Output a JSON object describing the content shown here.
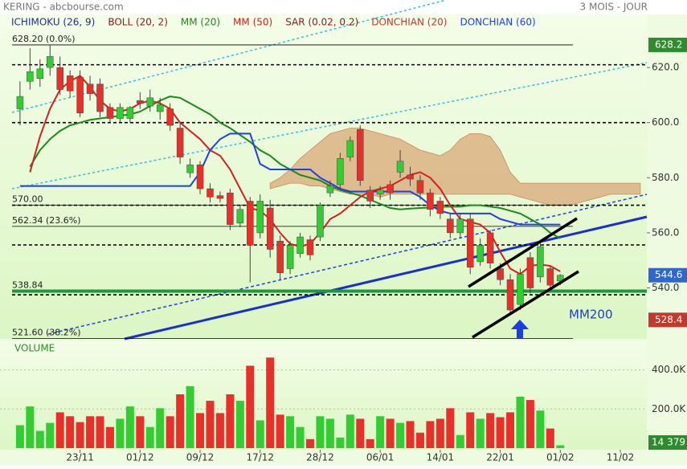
{
  "header": {
    "title": "KERING - abcbourse.com",
    "period": "3 MOIS - JOUR"
  },
  "chart_data": [
    {
      "type": "candlestick",
      "xlim": [
        -2,
        62.65
      ],
      "ylim": [
        521.5,
        644.5
      ],
      "yticks": [
        {
          "value": 620,
          "label": "620.0"
        },
        {
          "value": 600,
          "label": "600.0"
        },
        {
          "value": 580,
          "label": "580.0"
        },
        {
          "value": 560,
          "label": "560.0"
        },
        {
          "value": 540,
          "label": "540.0"
        }
      ],
      "up_color": "#33cc33",
      "down_color": "#e8302a",
      "open": [
        605,
        615,
        616,
        620,
        620,
        617,
        616.5,
        614,
        614,
        605.5,
        601.5,
        601.5,
        608,
        606,
        604,
        605,
        598,
        581.8,
        584.7,
        576,
        573.5,
        574.5,
        563.5,
        571.5,
        560,
        569,
        557,
        547,
        552.5,
        557.5,
        558.5,
        574.5,
        577.5,
        587.5,
        597.5,
        575.5,
        574,
        577.5,
        582,
        581,
        579,
        574.5,
        571.5,
        565,
        560,
        565,
        549.5,
        560,
        547,
        543,
        534,
        551,
        544,
        547,
        542.5
      ],
      "high": [
        615,
        627,
        623,
        628,
        624,
        619,
        619,
        617,
        616,
        607,
        607,
        606,
        611,
        612,
        609,
        607,
        600,
        587,
        586,
        578,
        575,
        576,
        570,
        573,
        574,
        572,
        559,
        557,
        560,
        559,
        571,
        579,
        589,
        595,
        599,
        577,
        577,
        579,
        590,
        584,
        581,
        576,
        573,
        567,
        567,
        567,
        558,
        561,
        549,
        545,
        547,
        553,
        557,
        548,
        545
      ],
      "low": [
        599,
        612,
        613,
        617,
        610,
        609,
        602,
        608,
        602,
        600,
        600,
        600,
        605,
        604,
        601,
        597,
        585,
        580,
        574,
        571,
        571,
        561,
        562,
        542,
        558,
        551,
        543,
        545,
        551,
        550,
        557,
        573,
        576,
        586,
        577,
        569,
        572,
        572,
        580,
        577,
        572,
        566,
        565,
        558,
        558,
        545,
        548,
        547,
        541,
        530,
        532,
        538,
        542,
        539,
        541
      ],
      "close": [
        609.5,
        618.5,
        619.5,
        624,
        612,
        611.5,
        603.5,
        610.5,
        604,
        601.5,
        605.5,
        605.5,
        607,
        609,
        606.5,
        599,
        587.5,
        584.7,
        576,
        573,
        572.5,
        563,
        568.5,
        555.5,
        571.5,
        554,
        545.5,
        555.5,
        558.5,
        552,
        570,
        577,
        587,
        593.5,
        579,
        571.5,
        575.5,
        574.5,
        586,
        579.5,
        574.5,
        568.5,
        567,
        560,
        565,
        547.5,
        555.5,
        549,
        543,
        532,
        545,
        540,
        555,
        541,
        544.6
      ],
      "series": [
        {
          "name": "ICHIMOKU (26, 9)",
          "color": "#1f2f8f",
          "x": [
            25,
            26,
            27,
            28,
            29,
            30,
            31,
            32,
            33,
            34,
            35,
            36,
            37,
            38,
            39,
            40,
            41,
            42,
            43,
            44,
            45,
            46,
            47,
            48,
            49,
            50,
            51,
            52,
            53,
            54,
            55,
            56,
            57,
            58,
            59,
            60,
            61,
            62
          ],
          "upper": [
            578,
            580,
            583,
            587,
            590,
            593,
            596,
            597,
            598,
            598,
            597,
            596,
            595,
            594,
            592,
            590,
            589,
            588,
            590,
            594,
            596,
            596,
            595,
            590,
            582,
            578,
            578,
            578,
            578,
            578,
            578,
            578,
            578,
            578,
            578,
            578,
            578,
            578
          ],
          "lower": [
            576,
            577,
            578,
            578,
            577,
            577,
            576,
            575,
            574,
            574,
            574,
            573,
            574,
            574,
            574,
            574,
            574,
            574,
            574,
            574,
            574,
            574,
            574,
            574,
            574,
            573,
            572,
            571,
            570,
            570,
            570,
            571,
            572,
            573,
            574,
            574,
            574,
            574
          ]
        },
        {
          "name": "BOLL (20, 2)",
          "color": "#8b1a1a"
        },
        {
          "name": "MM (20)",
          "color": "#1a8a1a",
          "values": [
            null,
            584,
            590,
            594,
            597,
            599,
            600,
            601,
            601.5,
            602,
            602.5,
            603,
            604,
            606,
            608,
            609.5,
            609,
            607,
            605,
            603,
            600,
            598,
            595.5,
            593,
            590,
            588,
            585,
            583,
            581,
            580,
            579,
            577,
            575.5,
            574.5,
            573.5,
            572,
            570.5,
            569,
            568.5,
            568.8,
            569,
            569.2,
            569.5,
            569.5,
            569.5,
            570,
            570,
            569.5,
            569,
            568,
            567,
            565,
            563,
            560,
            558
          ]
        },
        {
          "name": "MM (50)",
          "color": "#d42020",
          "values": [
            null,
            582,
            595,
            605,
            612,
            615,
            617,
            613,
            608,
            605,
            604,
            605,
            607,
            608,
            607,
            605,
            600,
            597,
            594,
            590,
            588,
            583,
            576,
            569,
            568,
            565,
            560,
            556,
            555,
            556,
            560,
            565,
            567,
            570,
            573,
            575,
            576,
            577,
            579,
            581,
            582,
            580,
            576,
            570,
            565,
            564,
            563,
            560,
            553,
            547,
            545,
            548,
            548.5,
            548,
            546
          ]
        },
        {
          "name": "SAR (0.02, 0.2)",
          "color": "#8b1a1a"
        },
        {
          "name": "DONCHIAN (20)",
          "color": "#c0392b"
        },
        {
          "name": "DONCHIAN (60)",
          "color": "#2040e0",
          "values": [
            577,
            577,
            577,
            577,
            577,
            577,
            577,
            577,
            577,
            577,
            577,
            577,
            577,
            577,
            577,
            577,
            577,
            577,
            582,
            590,
            594,
            596,
            596,
            596,
            585,
            583,
            583,
            583,
            583,
            583,
            580,
            578,
            576,
            575,
            575,
            575,
            575,
            575,
            575,
            575,
            573,
            570,
            568,
            567,
            567,
            567,
            567,
            567,
            565,
            564,
            563,
            563,
            563,
            563,
            563
          ]
        }
      ],
      "levels": [
        {
          "value": 628.2,
          "label": "628.20  (0.0%)"
        },
        {
          "value": 570.0,
          "label": "570.00"
        },
        {
          "value": 562.34,
          "label": "562.34  (23.6%)"
        },
        {
          "value": 538.84,
          "label": "538.84"
        },
        {
          "value": 521.6,
          "label": "521.60  (38.2%)"
        }
      ],
      "dotted_levels": [
        621,
        600,
        570,
        555.6,
        537.5
      ],
      "price_tags": [
        {
          "value": 628.2,
          "label": "628.2",
          "color": "#2e8b2e"
        },
        {
          "value": 544.6,
          "label": "544.6",
          "color": "#3366cc"
        },
        {
          "value": 528.4,
          "label": "528.4",
          "color": "#c0392b"
        }
      ],
      "annotations": [
        {
          "text": "MM200",
          "color": "#1a3fcc"
        }
      ]
    },
    {
      "type": "bar",
      "title": "VOLUME",
      "xlim": [
        -2,
        62.65
      ],
      "xticks": [
        {
          "value": 6,
          "label": "23/11"
        },
        {
          "value": 12,
          "label": "01/12"
        },
        {
          "value": 18,
          "label": "09/12"
        },
        {
          "value": 24,
          "label": "17/12"
        },
        {
          "value": 30,
          "label": "28/12"
        },
        {
          "value": 36,
          "label": "06/01"
        },
        {
          "value": 42,
          "label": "14/01"
        },
        {
          "value": 48,
          "label": "22/01"
        },
        {
          "value": 54,
          "label": "01/02"
        },
        {
          "value": 60,
          "label": "11/02"
        }
      ],
      "ylim": [
        0,
        546000
      ],
      "yticks": [
        {
          "value": 400000,
          "label": "400.0K"
        },
        {
          "value": 200000,
          "label": "200.0K"
        }
      ],
      "values": [
        117000,
        213000,
        88000,
        129000,
        183000,
        163000,
        133000,
        163000,
        163000,
        108000,
        150000,
        213000,
        163000,
        108000,
        204000,
        163000,
        275000,
        317000,
        179000,
        242000,
        179000,
        275000,
        242000,
        421000,
        142000,
        463000,
        171000,
        163000,
        108000,
        46000,
        163000,
        150000,
        54000,
        171000,
        150000,
        46000,
        163000,
        150000,
        129000,
        138000,
        79000,
        138000,
        150000,
        204000,
        67000,
        183000,
        150000,
        179000,
        158000,
        183000,
        263000,
        246000,
        192000,
        100000,
        14379
      ],
      "last_tag": {
        "value": 14379,
        "label": "14 379",
        "color": "#2e8b2e"
      }
    }
  ]
}
